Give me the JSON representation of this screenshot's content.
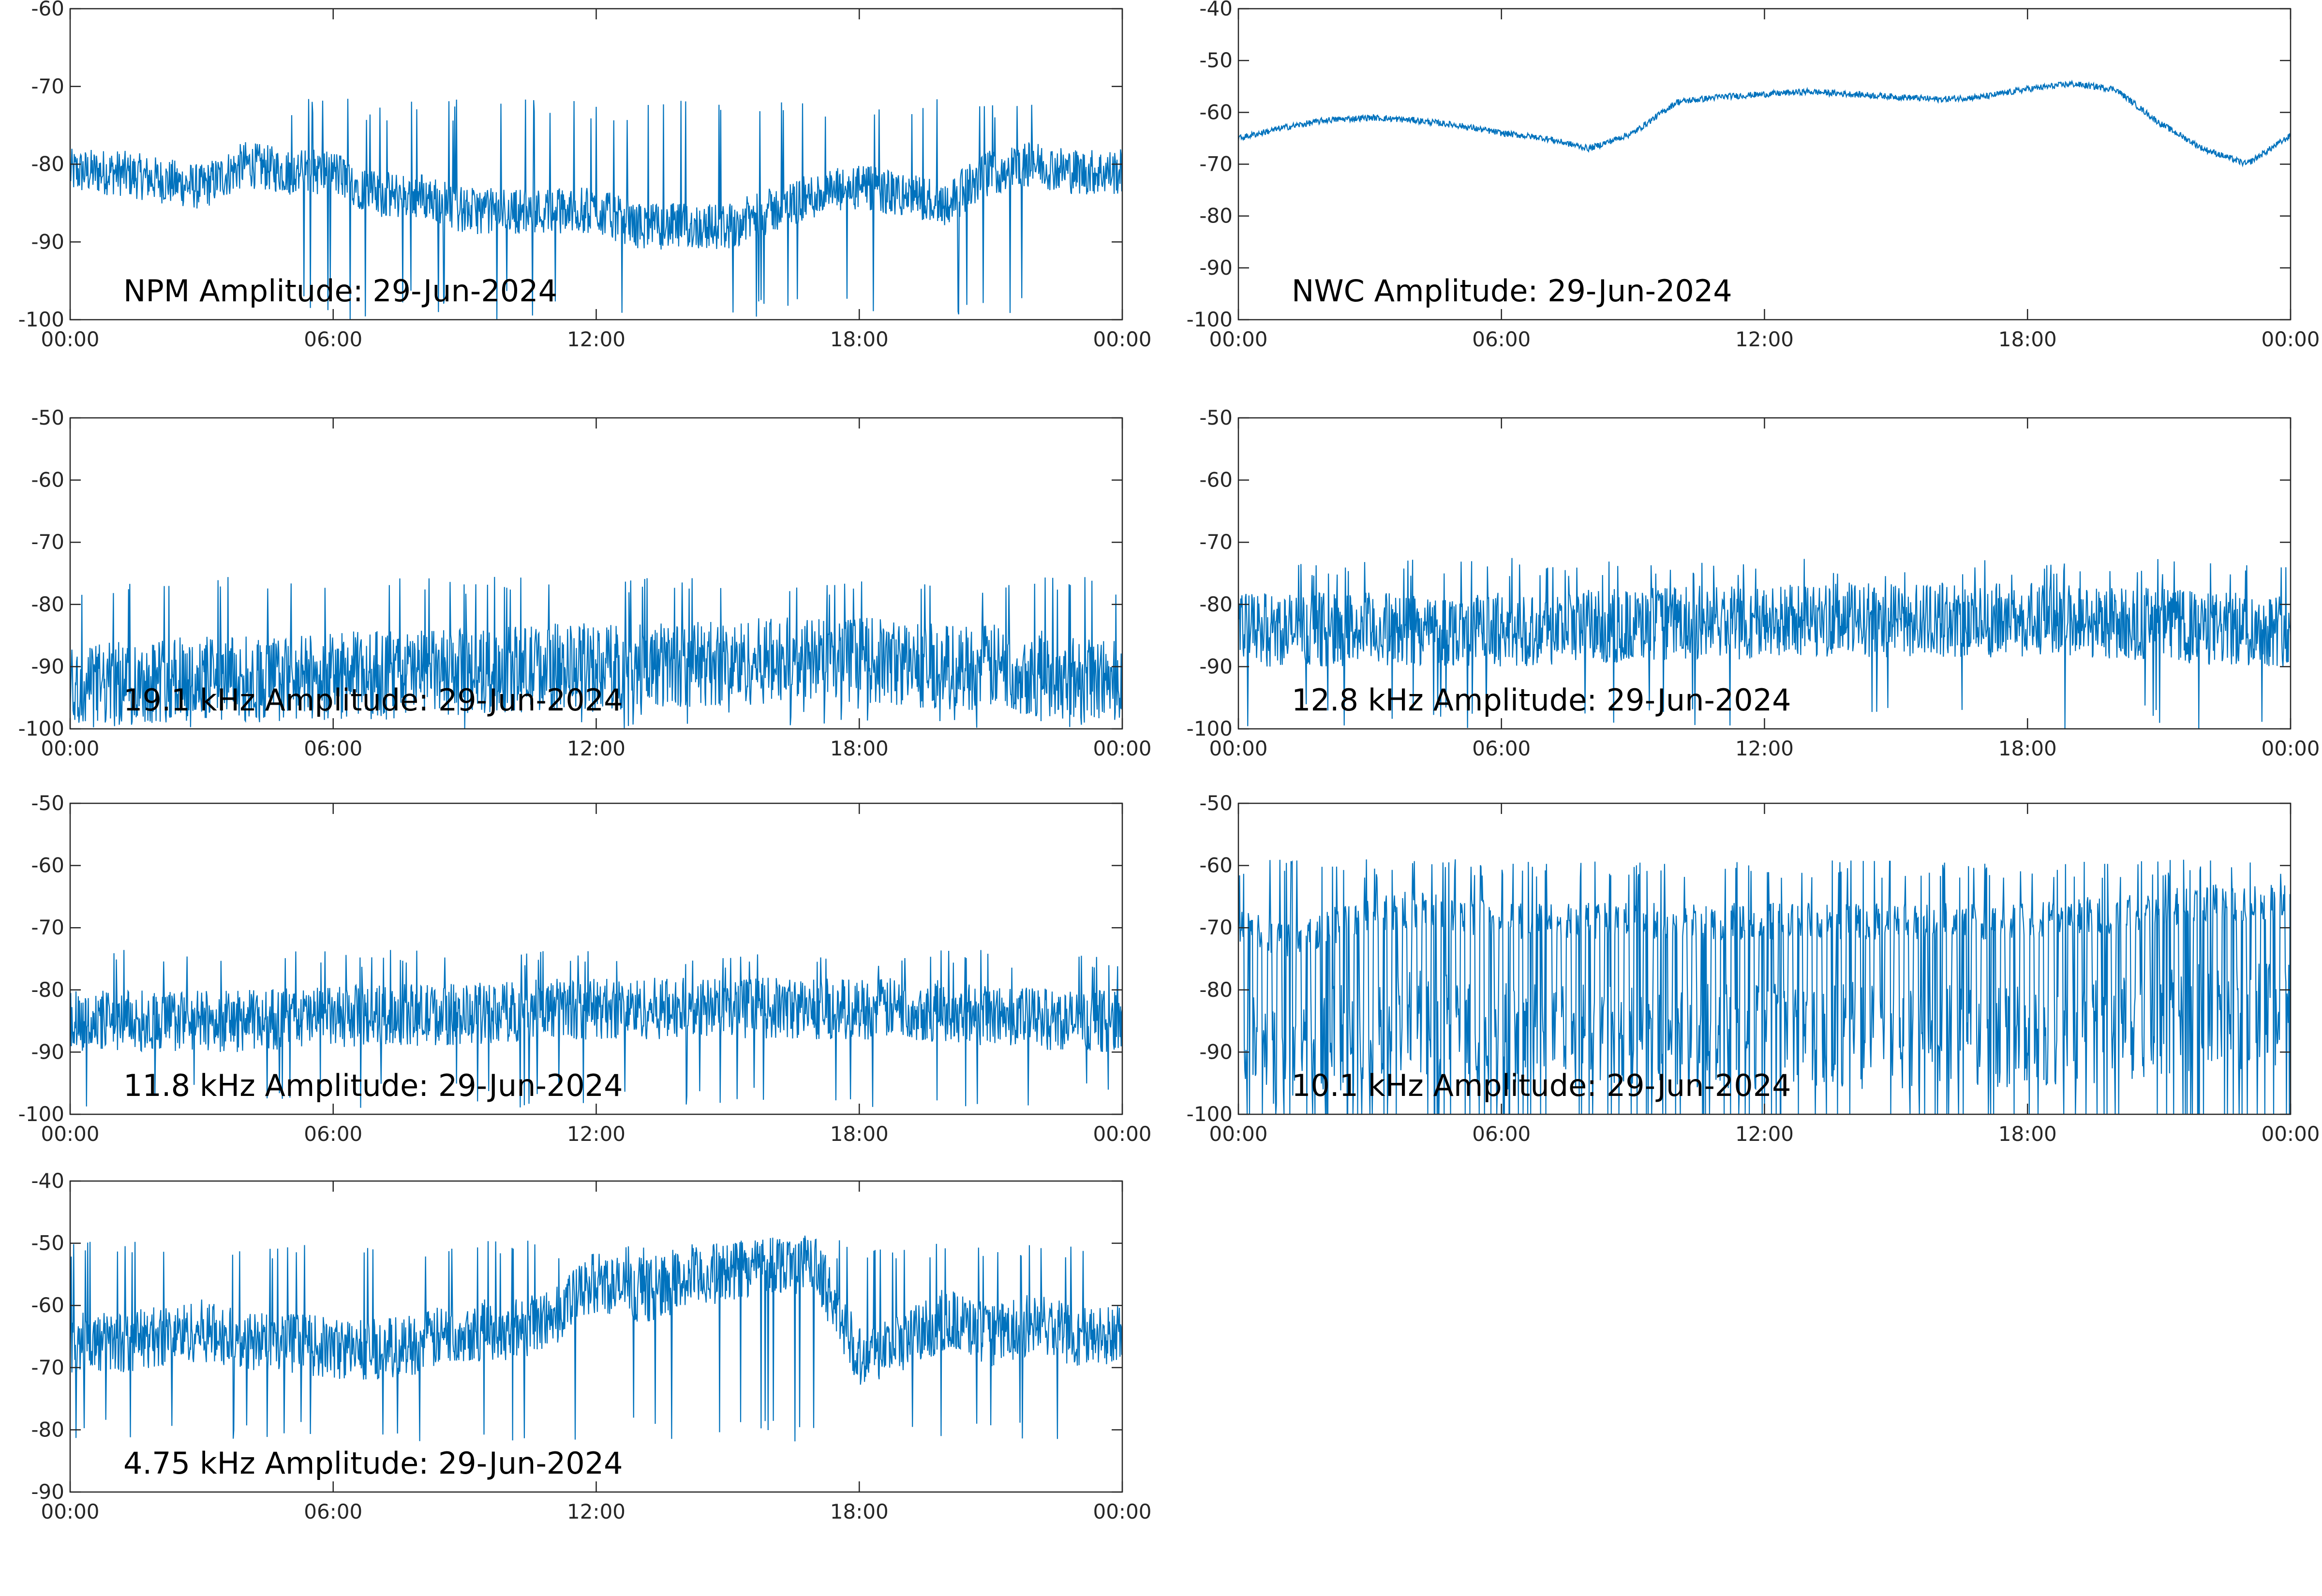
{
  "figure": {
    "background": "#ffffff",
    "line_color": "#0072BD",
    "grid": false
  },
  "chart_data": [
    {
      "type": "line",
      "title": "NPM Amplitude: 29-Jun-2024",
      "x_tick_labels": [
        "00:00",
        "06:00",
        "12:00",
        "18:00",
        "00:00"
      ],
      "xlim_hours": [
        0,
        24
      ],
      "ylim": [
        -100,
        -60
      ],
      "y_ticks": [
        -100,
        -90,
        -80,
        -70,
        -60
      ],
      "series": [
        {
          "values_hourly": [
            -81,
            -81,
            -82,
            -83,
            -80,
            -81,
            -81,
            -84,
            -84,
            -86,
            -86,
            -86,
            -86,
            -88,
            -88,
            -88,
            -86,
            -84,
            -83,
            -84,
            -85,
            -81,
            -80,
            -81,
            -81
          ],
          "noise_amplitude": 3,
          "spike_up_to": -73,
          "spike_down_to": -100,
          "spikes_start_hour": 5,
          "spikes_end_hour": 22
        }
      ]
    },
    {
      "type": "line",
      "title": "NWC Amplitude: 29-Jun-2024",
      "x_tick_labels": [
        "00:00",
        "06:00",
        "12:00",
        "18:00",
        "00:00"
      ],
      "xlim_hours": [
        0,
        24
      ],
      "ylim": [
        -100,
        -40
      ],
      "y_ticks": [
        -100,
        -90,
        -80,
        -70,
        -60,
        -50,
        -40
      ],
      "series": [
        {
          "values_hourly": [
            -65,
            -63,
            -61.5,
            -61,
            -61.5,
            -62.5,
            -64,
            -65,
            -67,
            -64,
            -58,
            -57,
            -56.5,
            -56,
            -56.5,
            -57,
            -57.5,
            -57,
            -55.5,
            -54.5,
            -55.5,
            -62,
            -67,
            -70,
            -64.5
          ],
          "noise_amplitude": 0.6
        }
      ]
    },
    {
      "type": "line",
      "title": "19.1 kHz Amplitude: 29-Jun-2024",
      "x_tick_labels": [
        "00:00",
        "06:00",
        "12:00",
        "18:00",
        "00:00"
      ],
      "xlim_hours": [
        0,
        24
      ],
      "ylim": [
        -100,
        -50
      ],
      "y_ticks": [
        -100,
        -90,
        -80,
        -70,
        -60,
        -50
      ],
      "series": [
        {
          "values_hourly": [
            -93,
            -93,
            -92,
            -92,
            -92,
            -92,
            -91.5,
            -91,
            -91,
            -91,
            -90.5,
            -90,
            -90,
            -90,
            -89.5,
            -89.5,
            -89,
            -89,
            -89,
            -89.5,
            -90,
            -90,
            -91,
            -92,
            -92
          ],
          "noise_amplitude": 7,
          "spike_up_to": -77,
          "spike_down_to": -100
        }
      ]
    },
    {
      "type": "line",
      "title": "12.8 kHz Amplitude: 29-Jun-2024",
      "x_tick_labels": [
        "00:00",
        "06:00",
        "12:00",
        "18:00",
        "00:00"
      ],
      "xlim_hours": [
        0,
        24
      ],
      "ylim": [
        -100,
        -50
      ],
      "y_ticks": [
        -100,
        -90,
        -80,
        -70,
        -60,
        -50
      ],
      "series": [
        {
          "values_hourly": [
            -84,
            -84,
            -84,
            -84,
            -84,
            -84,
            -84,
            -84,
            -83.5,
            -83.5,
            -83,
            -83,
            -83,
            -82.5,
            -82.5,
            -82.5,
            -82.5,
            -82.5,
            -82.5,
            -82.5,
            -83,
            -83,
            -84,
            -84,
            -84
          ],
          "noise_amplitude": 6,
          "spike_up_to": -74,
          "spike_down_to": -100
        }
      ]
    },
    {
      "type": "line",
      "title": "11.8 kHz Amplitude: 29-Jun-2024",
      "x_tick_labels": [
        "00:00",
        "06:00",
        "12:00",
        "18:00",
        "00:00"
      ],
      "xlim_hours": [
        0,
        24
      ],
      "ylim": [
        -100,
        -50
      ],
      "y_ticks": [
        -100,
        -90,
        -80,
        -70,
        -60,
        -50
      ],
      "series": [
        {
          "values_hourly": [
            -85,
            -85,
            -85,
            -85,
            -85,
            -84.5,
            -84.5,
            -84,
            -84,
            -84,
            -83.5,
            -83,
            -83,
            -83,
            -83,
            -83,
            -83,
            -83,
            -83,
            -83,
            -83.5,
            -84,
            -84.5,
            -85,
            -85
          ],
          "noise_amplitude": 5,
          "spike_up_to": -75,
          "spike_down_to": -99
        }
      ]
    },
    {
      "type": "line",
      "title": "10.1 kHz Amplitude: 29-Jun-2024",
      "x_tick_labels": [
        "00:00",
        "06:00",
        "12:00",
        "18:00",
        "00:00"
      ],
      "xlim_hours": [
        0,
        24
      ],
      "ylim": [
        -100,
        -50
      ],
      "y_ticks": [
        -100,
        -90,
        -80,
        -70,
        -60,
        -50
      ],
      "series": [
        {
          "values_hourly": [
            -72,
            -74,
            -72,
            -70,
            -69,
            -70,
            -71,
            -71,
            -71,
            -71,
            -71,
            -71,
            -71,
            -71,
            -71,
            -71,
            -71,
            -71,
            -71,
            -70,
            -70,
            -69,
            -68,
            -68,
            -68
          ],
          "noise_amplitude": 3,
          "spike_up_to": -62,
          "spike_down_to": -100,
          "oscillation_period_hours": 0.22,
          "oscillation_depth": 25
        }
      ]
    },
    {
      "type": "line",
      "title": "4.75 kHz Amplitude: 29-Jun-2024",
      "x_tick_labels": [
        "00:00",
        "06:00",
        "12:00",
        "18:00",
        "00:00"
      ],
      "xlim_hours": [
        0,
        24
      ],
      "ylim": [
        -90,
        -40
      ],
      "y_ticks": [
        -90,
        -80,
        -70,
        -60,
        -50,
        -40
      ],
      "series": [
        {
          "values_hourly": [
            -66,
            -66,
            -65,
            -64,
            -66,
            -66,
            -67,
            -67,
            -66,
            -64,
            -64,
            -62,
            -56,
            -58,
            -56,
            -54.5,
            -53,
            -53.5,
            -68,
            -66,
            -62,
            -65,
            -63,
            -65,
            -65
          ],
          "noise_amplitude": 5,
          "spike_up_to": -51,
          "spike_down_to": -82
        }
      ]
    }
  ]
}
